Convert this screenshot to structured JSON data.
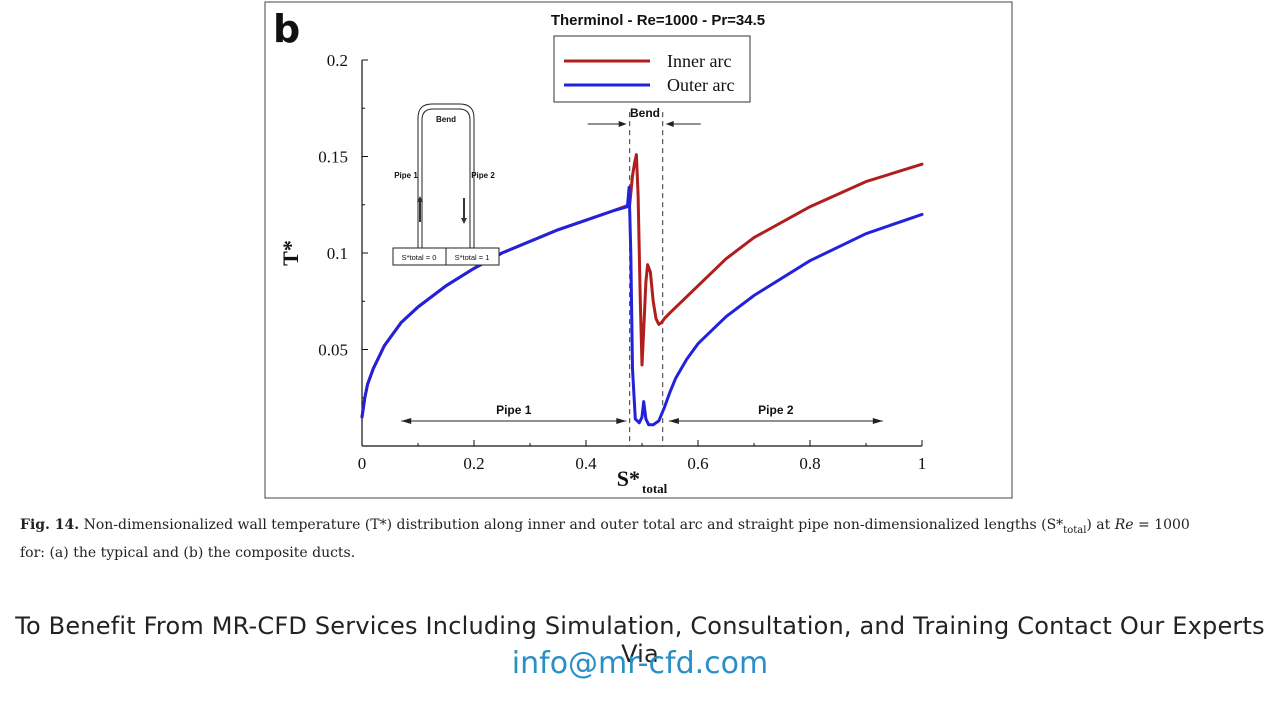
{
  "panel_label": "b",
  "chart_data": {
    "type": "line",
    "title": "Therminol - Re=1000 - Pr=34.5",
    "xlabel": "S*",
    "xlabel_sub": "total",
    "ylabel": "T*",
    "xlim": [
      0,
      1
    ],
    "ylim": [
      0,
      0.2
    ],
    "xticks": [
      0,
      0.2,
      0.4,
      0.6,
      0.8,
      1
    ],
    "xtick_labels": [
      "0",
      "0.2",
      "0.4",
      "0.6",
      "0.8",
      "1"
    ],
    "yticks": [
      0.05,
      0.1,
      0.15,
      0.2
    ],
    "ytick_labels": [
      "0.05",
      "0.1",
      "0.15",
      "0.2"
    ],
    "legend_position": "top-center",
    "series": [
      {
        "name": "Inner arc",
        "color": "#b01e1e",
        "x": [
          0,
          0.005,
          0.01,
          0.02,
          0.04,
          0.07,
          0.1,
          0.15,
          0.2,
          0.25,
          0.3,
          0.35,
          0.4,
          0.45,
          0.478,
          0.483,
          0.487,
          0.49,
          0.493,
          0.497,
          0.5,
          0.503,
          0.507,
          0.51,
          0.515,
          0.52,
          0.525,
          0.53,
          0.535,
          0.54,
          0.55,
          0.6,
          0.65,
          0.7,
          0.8,
          0.9,
          1.0
        ],
        "y": [
          0.015,
          0.025,
          0.032,
          0.04,
          0.052,
          0.064,
          0.072,
          0.083,
          0.092,
          0.1,
          0.106,
          0.112,
          0.117,
          0.122,
          0.125,
          0.14,
          0.147,
          0.151,
          0.13,
          0.075,
          0.042,
          0.06,
          0.085,
          0.094,
          0.09,
          0.075,
          0.066,
          0.063,
          0.064,
          0.066,
          0.069,
          0.083,
          0.097,
          0.108,
          0.124,
          0.137,
          0.146
        ]
      },
      {
        "name": "Outer arc",
        "color": "#2222dd",
        "x": [
          0,
          0.005,
          0.01,
          0.02,
          0.04,
          0.07,
          0.1,
          0.15,
          0.2,
          0.25,
          0.3,
          0.35,
          0.4,
          0.45,
          0.474,
          0.477,
          0.48,
          0.483,
          0.488,
          0.495,
          0.5,
          0.503,
          0.507,
          0.512,
          0.52,
          0.53,
          0.54,
          0.55,
          0.56,
          0.58,
          0.6,
          0.65,
          0.7,
          0.8,
          0.9,
          1.0
        ],
        "y": [
          0.015,
          0.025,
          0.032,
          0.04,
          0.052,
          0.064,
          0.072,
          0.083,
          0.092,
          0.1,
          0.106,
          0.112,
          0.117,
          0.122,
          0.124,
          0.134,
          0.1,
          0.04,
          0.014,
          0.012,
          0.015,
          0.023,
          0.014,
          0.011,
          0.011,
          0.013,
          0.02,
          0.028,
          0.035,
          0.045,
          0.053,
          0.067,
          0.078,
          0.096,
          0.11,
          0.12
        ]
      }
    ],
    "bend_label": "Bend",
    "bend_x": [
      0.478,
      0.537
    ],
    "annotations": [
      {
        "label": "Pipe 1",
        "x_from": 0.07,
        "x_to": 0.472,
        "y": 0.012
      },
      {
        "label": "Pipe 2",
        "x_from": 0.548,
        "x_to": 0.93,
        "y": 0.012
      }
    ],
    "inset": {
      "bend": "Bend",
      "pipe1": "Pipe 1",
      "pipe2": "Pipe 2",
      "s0": "S*total = 0",
      "s1": "S*total = 1"
    }
  },
  "caption": {
    "label": "Fig. 14.",
    "text_a": "Non-dimensionalized wall temperature (T*) distribution along inner and outer total arc and straight pipe non-dimensionalized lengths (S*",
    "text_sub": "total",
    "text_b": ") at",
    "text_re": "Re",
    "text_c": "= 1000",
    "text_d": "for: (a) the typical and (b) the composite ducts."
  },
  "promo_text": "To Benefit From MR-CFD Services Including Simulation, Consultation, and Training Contact Our Experts Via",
  "email": "info@mr-cfd.com"
}
